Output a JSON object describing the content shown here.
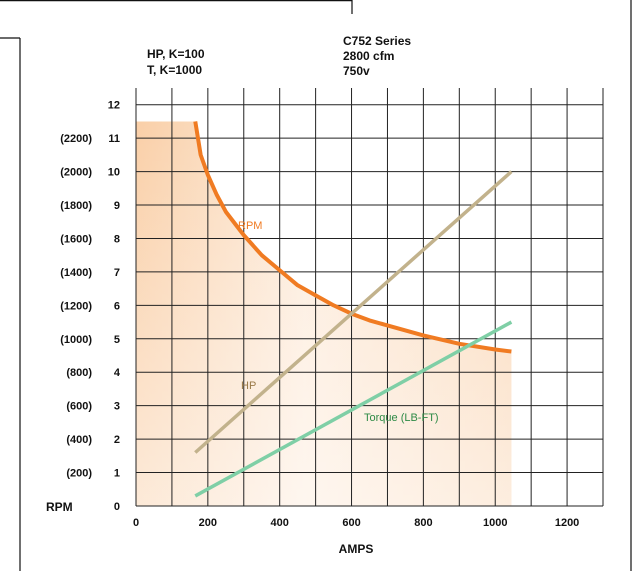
{
  "chart_data": {
    "type": "line",
    "header_left": [
      "HP, K=100",
      "T, K=1000"
    ],
    "header_right": [
      "C752 Series",
      "2800 cfm",
      "750v"
    ],
    "xlabel": "AMPS",
    "ylabel": "RPM",
    "xlim": [
      0,
      1300
    ],
    "ylim": [
      0,
      12.5
    ],
    "x_ticks": [
      "0",
      "200",
      "400",
      "600",
      "800",
      "1000",
      "1200"
    ],
    "y_ticks": [
      "0",
      "1",
      "2",
      "3",
      "4",
      "5",
      "6",
      "7",
      "8",
      "9",
      "10",
      "11",
      "12"
    ],
    "y_ticks_rpm": [
      "",
      "(200)",
      "(400)",
      "(600)",
      "(800)",
      "(1000)",
      "(1200)",
      "(1400)",
      "(1600)",
      "(1800)",
      "(2000)",
      "(2200)",
      ""
    ],
    "grid": true,
    "series": [
      {
        "name": "RPM",
        "color": "#f07b22",
        "x": [
          165,
          180,
          200,
          225,
          250,
          300,
          350,
          400,
          450,
          500,
          550,
          600,
          650,
          700,
          800,
          900,
          1000,
          1045
        ],
        "y": [
          11.5,
          10.5,
          9.9,
          9.3,
          8.8,
          8.1,
          7.5,
          7.05,
          6.6,
          6.3,
          6.0,
          5.75,
          5.55,
          5.4,
          5.1,
          4.85,
          4.68,
          4.62
        ]
      },
      {
        "name": "HP",
        "color": "#c2b28c",
        "x": [
          165,
          1045
        ],
        "y": [
          1.6,
          10.0
        ]
      },
      {
        "name": "Torque (LB-FT)",
        "color": "#7fcfa6",
        "x": [
          165,
          1045
        ],
        "y": [
          0.3,
          5.5
        ]
      }
    ],
    "series_label_colors": {
      "RPM": "#f07b22",
      "HP": "#9a7a48",
      "Torque (LB-FT)": "#2e8a46"
    },
    "fill": {
      "color": "#f5a860",
      "x_start": 0,
      "x_end": 1045
    }
  }
}
